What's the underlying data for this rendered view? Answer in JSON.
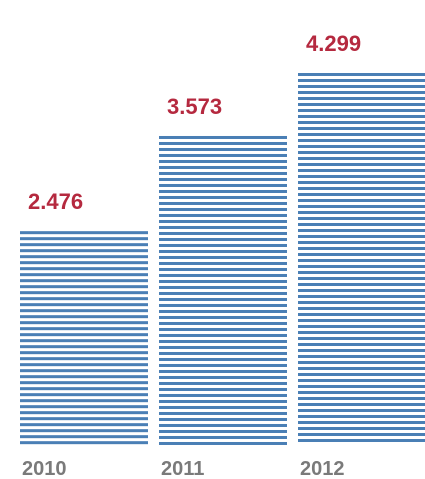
{
  "chart_data": {
    "type": "bar",
    "title": "",
    "xlabel": "",
    "ylabel": "",
    "categories": [
      "2010",
      "2011",
      "2012"
    ],
    "values": [
      2.476,
      3.573,
      4.299
    ],
    "value_labels": [
      "2.476",
      "3.573",
      "4.299"
    ],
    "ylim": [
      0,
      4.299
    ],
    "grid": false,
    "legend": "none",
    "style": "striped-horizontal-lines"
  },
  "colors": {
    "bar": "#4a7fb5",
    "value_label": "#b5293f",
    "category_label": "#7a7a7a",
    "background": "#ffffff"
  }
}
